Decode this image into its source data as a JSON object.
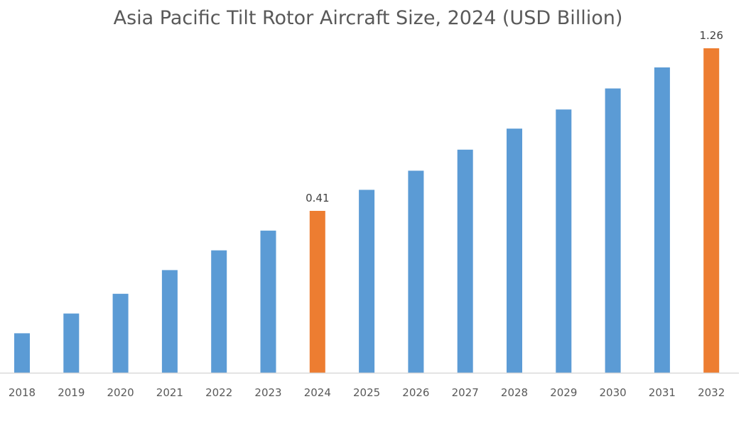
{
  "chart_data": {
    "type": "bar",
    "title": "Asia Pacific Tilt Rotor Aircraft Size, 2024 (USD Billion)",
    "xlabel": "",
    "ylabel": "",
    "categories": [
      "2018",
      "2019",
      "2020",
      "2021",
      "2022",
      "2023",
      "2024",
      "2025",
      "2026",
      "2027",
      "2028",
      "2029",
      "2030",
      "2031",
      "2032"
    ],
    "values": [
      0.1,
      0.15,
      0.2,
      0.26,
      0.31,
      0.36,
      0.41,
      0.52,
      0.62,
      0.73,
      0.84,
      0.94,
      1.05,
      1.16,
      1.26
    ],
    "data_labels": {
      "2024": "0.41",
      "2032": "1.26"
    },
    "highlight_categories": [
      "2024",
      "2032"
    ],
    "colors": {
      "default": "#5B9BD5",
      "highlight": "#ED7D31",
      "axis": "#D9D9D9",
      "text": "#595959"
    },
    "grid": false,
    "legend": "none",
    "y_axis_visible": false
  }
}
